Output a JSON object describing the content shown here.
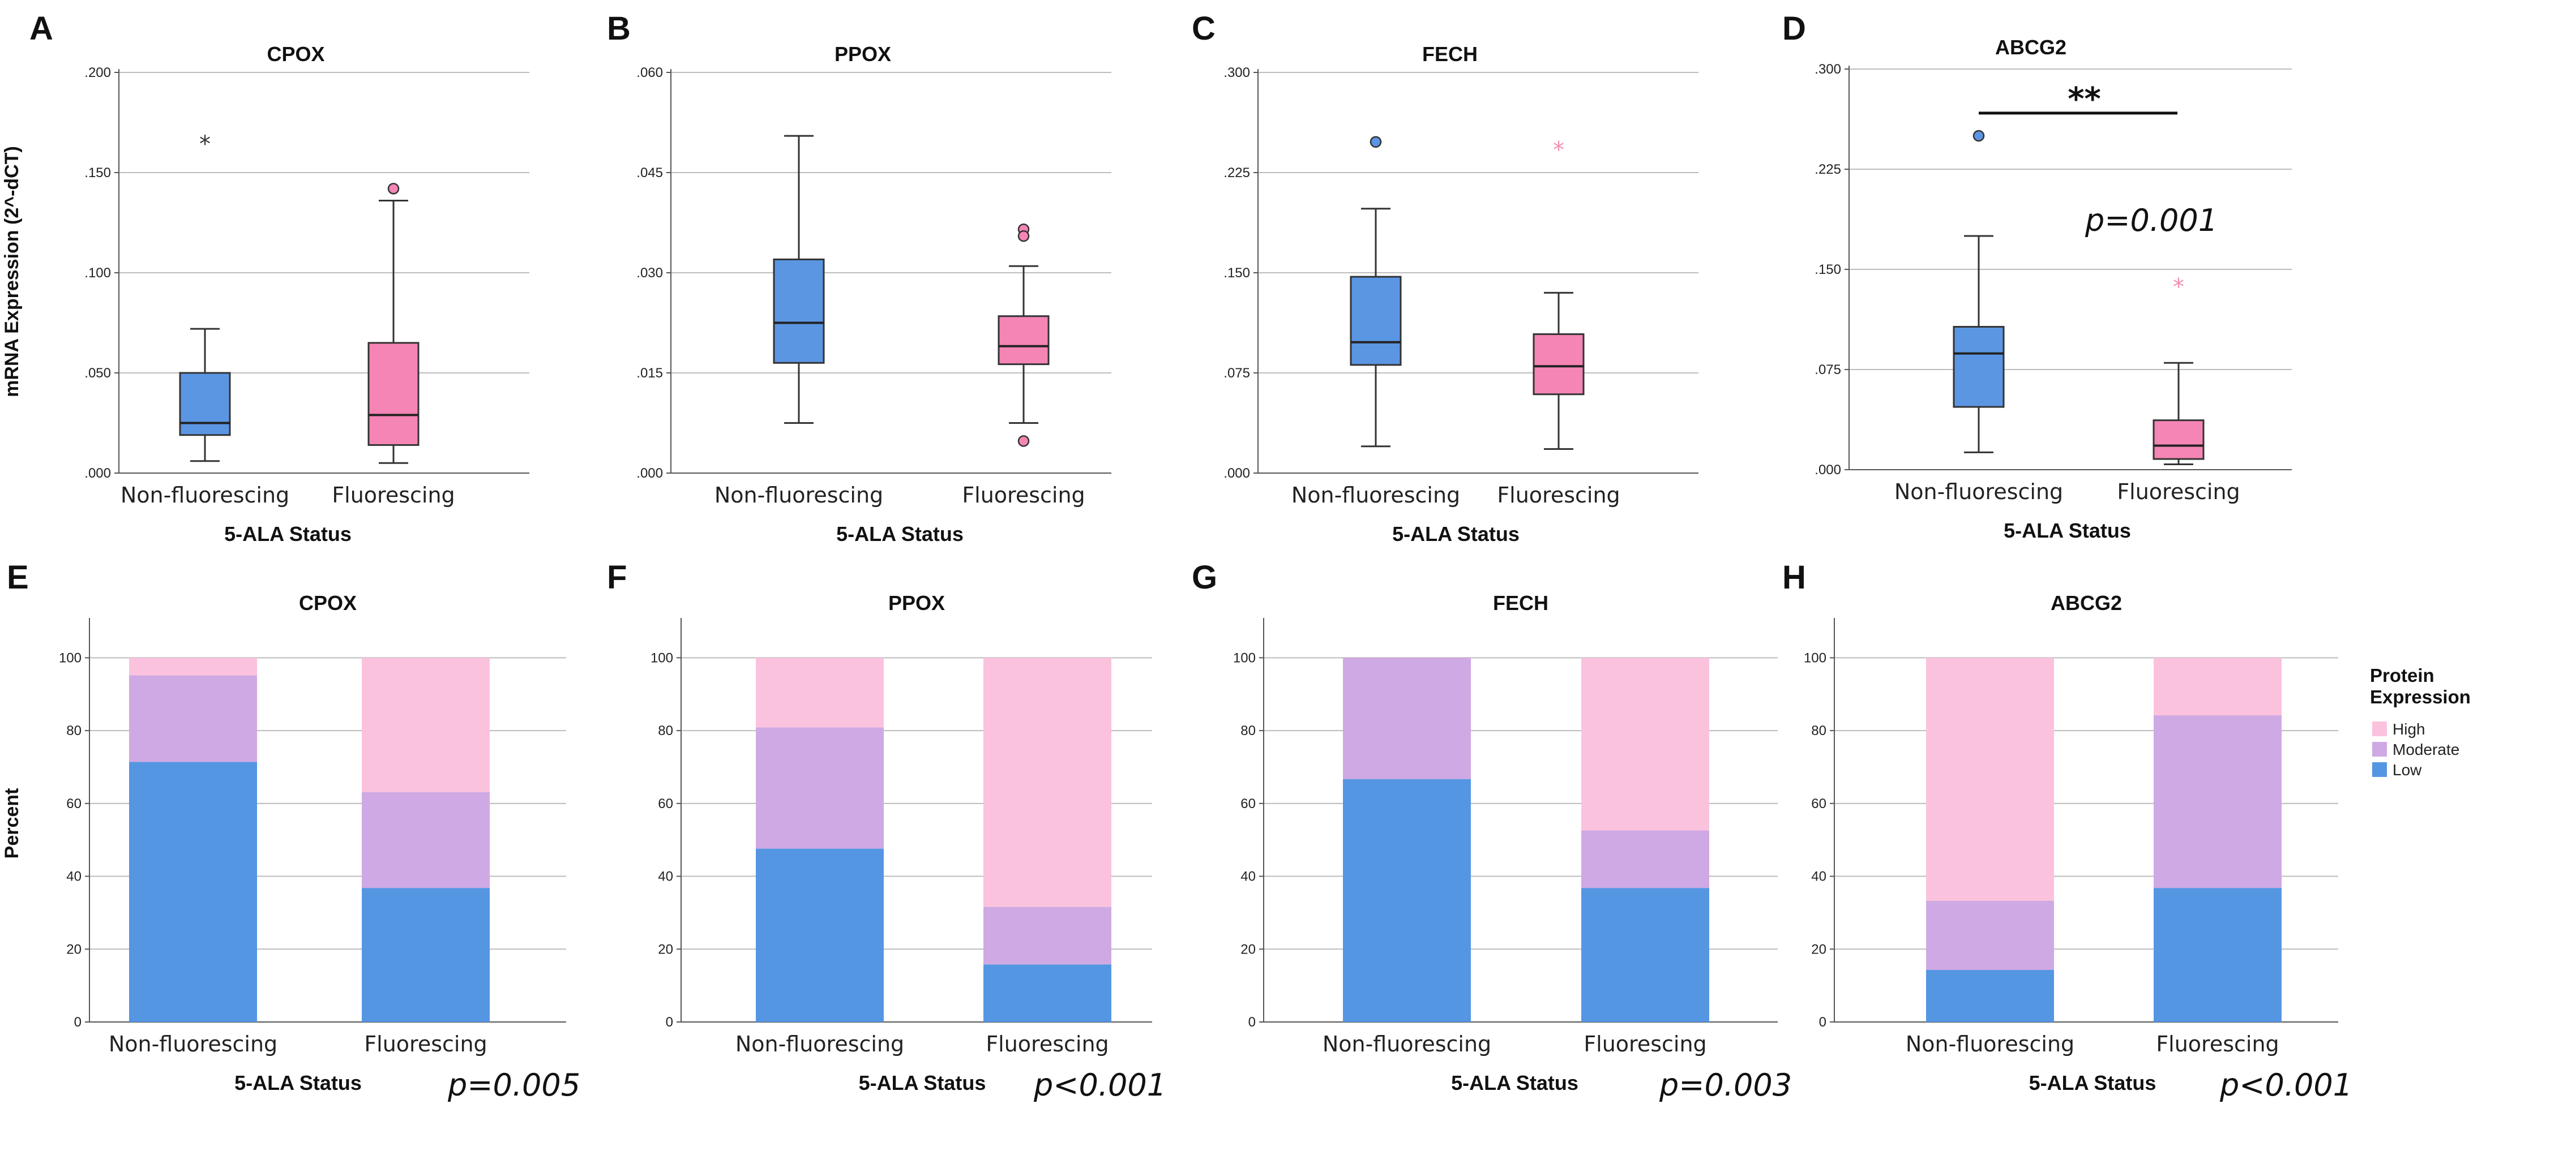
{
  "colors": {
    "nonfluor": "#5b96e3",
    "fluor": "#f585b4",
    "high": "#fbc2de",
    "moderate": "#cfa9e3",
    "low": "#5596e3",
    "grid": "#bdbdbd",
    "axis": "#555555",
    "outlier_star_fluor": "#f38fb4"
  },
  "figure": {
    "y_axis_title_top": "mRNA Expression (2^-dCT)",
    "y_axis_title_bottom": "Percent",
    "x_axis_title": "5-ALA Status",
    "legend": {
      "title_line1": "Protein",
      "title_line2": "Expression",
      "items": [
        "High",
        "Moderate",
        "Low"
      ]
    }
  },
  "chart_data": [
    {
      "id": "A",
      "letter": "A",
      "type": "box",
      "title": "CPOX",
      "yticks": [
        ".000",
        ".050",
        ".100",
        ".150",
        ".200"
      ],
      "ylim": [
        0,
        0.2
      ],
      "xlabel": "5-ALA Status",
      "ylabel": "mRNA Expression (2^-dCT)",
      "categories": [
        "Non-fluorescing",
        "Fluorescing"
      ],
      "boxes": [
        {
          "whisker_low": 0.006,
          "q1": 0.019,
          "median": 0.025,
          "q3": 0.05,
          "whisker_high": 0.072,
          "outliers": [],
          "extremes": [
            0.165
          ]
        },
        {
          "whisker_low": 0.005,
          "q1": 0.014,
          "median": 0.029,
          "q3": 0.065,
          "whisker_high": 0.136,
          "outliers": [
            0.142
          ],
          "extremes": []
        }
      ]
    },
    {
      "id": "B",
      "letter": "B",
      "type": "box",
      "title": "PPOX",
      "yticks": [
        ".000",
        ".015",
        ".030",
        ".045",
        ".060"
      ],
      "ylim": [
        0,
        0.06
      ],
      "xlabel": "5-ALA Status",
      "ylabel": "",
      "categories": [
        "Non-fluorescing",
        "Fluorescing"
      ],
      "boxes": [
        {
          "whisker_low": 0.0075,
          "q1": 0.0165,
          "median": 0.0225,
          "q3": 0.032,
          "whisker_high": 0.0505,
          "outliers": [],
          "extremes": []
        },
        {
          "whisker_low": 0.0075,
          "q1": 0.0163,
          "median": 0.019,
          "q3": 0.0235,
          "whisker_high": 0.031,
          "outliers": [
            0.0365,
            0.0355,
            0.0048
          ],
          "extremes": []
        }
      ]
    },
    {
      "id": "C",
      "letter": "C",
      "type": "box",
      "title": "FECH",
      "yticks": [
        ".000",
        ".075",
        ".150",
        ".225",
        ".300"
      ],
      "ylim": [
        0,
        0.3
      ],
      "xlabel": "5-ALA Status",
      "ylabel": "",
      "categories": [
        "Non-fluorescing",
        "Fluorescing"
      ],
      "boxes": [
        {
          "whisker_low": 0.02,
          "q1": 0.081,
          "median": 0.098,
          "q3": 0.147,
          "whisker_high": 0.198,
          "outliers": [
            0.248
          ],
          "extremes": []
        },
        {
          "whisker_low": 0.018,
          "q1": 0.059,
          "median": 0.08,
          "q3": 0.104,
          "whisker_high": 0.135,
          "outliers": [],
          "extremes": [
            0.243
          ]
        }
      ]
    },
    {
      "id": "D",
      "letter": "D",
      "type": "box",
      "title": "ABCG2",
      "yticks": [
        ".000",
        ".075",
        ".150",
        ".225",
        ".300"
      ],
      "ylim": [
        0,
        0.3
      ],
      "xlabel": "5-ALA Status",
      "ylabel": "",
      "categories": [
        "Non-fluorescing",
        "Fluorescing"
      ],
      "boxes": [
        {
          "whisker_low": 0.013,
          "q1": 0.047,
          "median": 0.087,
          "q3": 0.107,
          "whisker_high": 0.175,
          "outliers": [
            0.25
          ],
          "extremes": []
        },
        {
          "whisker_low": 0.004,
          "q1": 0.008,
          "median": 0.018,
          "q3": 0.037,
          "whisker_high": 0.08,
          "outliers": [],
          "extremes": [
            0.138
          ]
        }
      ],
      "significance": "**",
      "p_value": "p=0.001"
    },
    {
      "id": "E",
      "letter": "E",
      "type": "stacked_bar",
      "title": "CPOX",
      "yticks": [
        "0",
        "20",
        "40",
        "60",
        "80",
        "100"
      ],
      "ylim": [
        0,
        110
      ],
      "xlabel": "5-ALA Status",
      "ylabel": "Percent",
      "categories": [
        "Non-fluorescing",
        "Fluorescing"
      ],
      "series": [
        {
          "name": "Low",
          "values": [
            71.4,
            36.8
          ]
        },
        {
          "name": "Moderate",
          "values": [
            23.8,
            26.3
          ]
        },
        {
          "name": "High",
          "values": [
            4.8,
            36.9
          ]
        }
      ],
      "p_value": "p=0.005"
    },
    {
      "id": "F",
      "letter": "F",
      "type": "stacked_bar",
      "title": "PPOX",
      "yticks": [
        "0",
        "20",
        "40",
        "60",
        "80",
        "100"
      ],
      "ylim": [
        0,
        110
      ],
      "xlabel": "5-ALA Status",
      "ylabel": "",
      "categories": [
        "Non-fluorescing",
        "Fluorescing"
      ],
      "series": [
        {
          "name": "Low",
          "values": [
            47.6,
            15.8
          ]
        },
        {
          "name": "Moderate",
          "values": [
            33.3,
            15.8
          ]
        },
        {
          "name": "High",
          "values": [
            19.1,
            68.4
          ]
        }
      ],
      "p_value": "p<0.001"
    },
    {
      "id": "G",
      "letter": "G",
      "type": "stacked_bar",
      "title": "FECH",
      "yticks": [
        "0",
        "20",
        "40",
        "60",
        "80",
        "100"
      ],
      "ylim": [
        0,
        110
      ],
      "xlabel": "5-ALA Status",
      "ylabel": "",
      "categories": [
        "Non-fluorescing",
        "Fluorescing"
      ],
      "series": [
        {
          "name": "Low",
          "values": [
            66.7,
            36.8
          ]
        },
        {
          "name": "Moderate",
          "values": [
            33.3,
            15.8
          ]
        },
        {
          "name": "High",
          "values": [
            0,
            47.4
          ]
        }
      ],
      "p_value": "p=0.003"
    },
    {
      "id": "H",
      "letter": "H",
      "type": "stacked_bar",
      "title": "ABCG2",
      "yticks": [
        "0",
        "20",
        "40",
        "60",
        "80",
        "100"
      ],
      "ylim": [
        0,
        110
      ],
      "xlabel": "5-ALA Status",
      "ylabel": "",
      "categories": [
        "Non-fluorescing",
        "Fluorescing"
      ],
      "series": [
        {
          "name": "Low",
          "values": [
            14.3,
            36.8
          ]
        },
        {
          "name": "Moderate",
          "values": [
            19.0,
            47.4
          ]
        },
        {
          "name": "High",
          "values": [
            66.7,
            15.8
          ]
        }
      ],
      "p_value": "p<0.001"
    }
  ]
}
